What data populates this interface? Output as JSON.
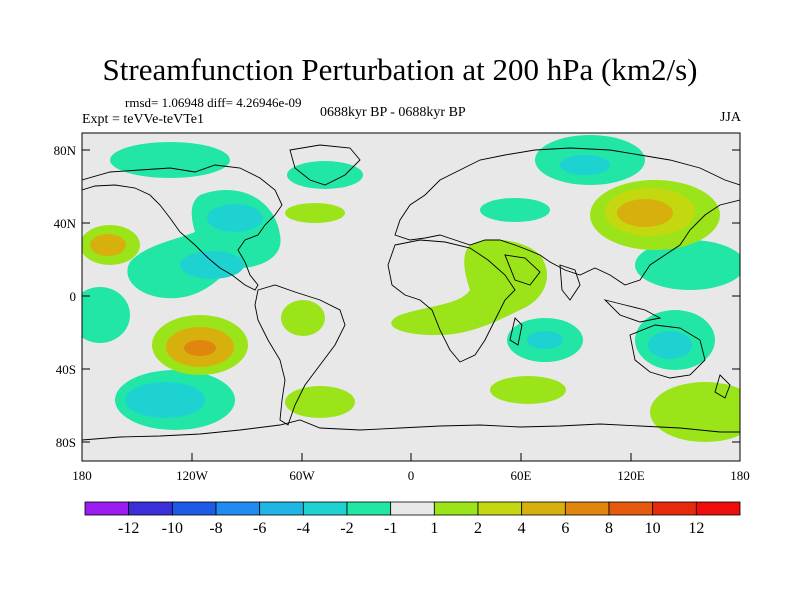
{
  "title": "Streamfunction Perturbation at 200 hPa (km2/s)",
  "stats": "rmsd= 1.06948 diff= 4.26946e-09",
  "experiment": "Expt = teVVe-teVTe1",
  "period": "0688kyr BP - 0688kyr BP",
  "season": "JJA",
  "map": {
    "lat_ticks": [
      "80N",
      "40N",
      "0",
      "40S",
      "80S"
    ],
    "lon_ticks": [
      "180",
      "120W",
      "60W",
      "0",
      "60E",
      "120E",
      "180"
    ],
    "ocean_color": "#e8e8e8"
  },
  "colorbar": {
    "labels": [
      "-12",
      "-10",
      "-8",
      "-6",
      "-4",
      "-2",
      "-1",
      "1",
      "2",
      "4",
      "6",
      "8",
      "10",
      "12"
    ],
    "colors": [
      "#9a1cf0",
      "#3a2fd8",
      "#1d5be6",
      "#1f8cf0",
      "#1fb6e6",
      "#1ed2d2",
      "#22e6a6",
      "#e8e8e8",
      "#9be41a",
      "#c4d80f",
      "#d8b00e",
      "#e0860e",
      "#e65a0e",
      "#e82a0c",
      "#ee0c0c"
    ]
  }
}
